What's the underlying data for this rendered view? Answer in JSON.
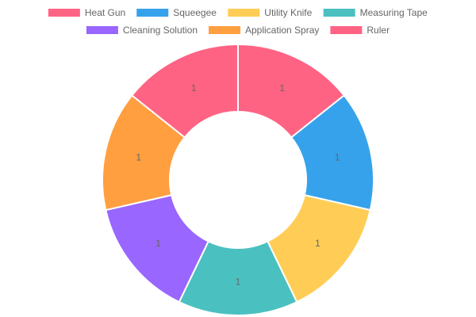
{
  "chart_data": {
    "type": "doughnut",
    "categories": [
      "Heat Gun",
      "Squeegee",
      "Utility Knife",
      "Measuring Tape",
      "Cleaning Solution",
      "Application Spray",
      "Ruler"
    ],
    "values": [
      1,
      1,
      1,
      1,
      1,
      1,
      1
    ],
    "data_labels": [
      "1",
      "1",
      "1",
      "1",
      "1",
      "1",
      "1"
    ],
    "colors": [
      "#ff6384",
      "#36a2eb",
      "#ffcd56",
      "#4bc0c0",
      "#9966ff",
      "#ff9f40",
      "#ff6384"
    ],
    "legend_position": "top",
    "start_angle_deg": 0,
    "direction": "clockwise",
    "border_color": "#ffffff"
  }
}
